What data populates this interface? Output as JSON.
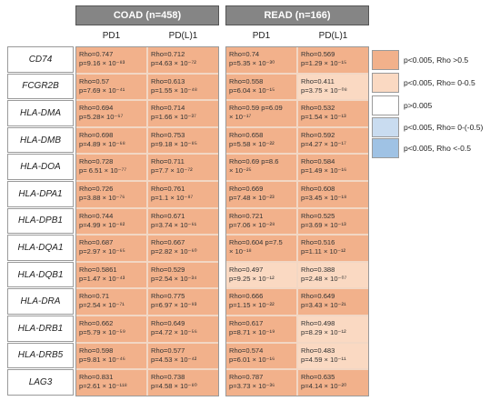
{
  "legend": [
    {
      "label": "p<0.005, Rho >0.5",
      "color": "#f2b18b"
    },
    {
      "label": "p<0.005, Rho= 0-0.5",
      "color": "#fad9c2"
    },
    {
      "label": "p>0.005",
      "color": "#ffffff"
    },
    {
      "label": "p<0.005, Rho= 0-(-0.5)",
      "color": "#c9dcf0"
    },
    {
      "label": "p<0.005, Rho <-0.5",
      "color": "#9fc2e4"
    }
  ],
  "chart_data": {
    "type": "table",
    "groups": [
      "COAD (n=458)",
      "READ (n=166)"
    ],
    "columns": [
      "PD1",
      "PD(L)1"
    ],
    "rows": [
      {
        "gene": "CD74",
        "cells": [
          {
            "rho": "Rho=0.747",
            "p": "p=9.16 × 10⁻⁸³",
            "cat": 0
          },
          {
            "rho": "Rho=0.712",
            "p": "p=4.63 × 10⁻⁷²",
            "cat": 0
          },
          {
            "rho": "Rho=0.74",
            "p": "p=5.35 × 10⁻³⁰",
            "cat": 0
          },
          {
            "rho": "Rho=0.569",
            "p": "p=1.29 × 10⁻¹⁵",
            "cat": 0
          }
        ]
      },
      {
        "gene": "FCGR2B",
        "cells": [
          {
            "rho": "Rho=0.57",
            "p": "p=7.69 × 10⁻⁴¹",
            "cat": 0
          },
          {
            "rho": "Rho=0.613",
            "p": "p=1.55 × 10⁻⁴⁸",
            "cat": 0
          },
          {
            "rho": "Rho=0.558",
            "p": "p=6.04 × 10⁻¹⁵",
            "cat": 0
          },
          {
            "rho": "Rho=0.411",
            "p": "p=3.75 × 10⁻⁰⁸",
            "cat": 1
          }
        ]
      },
      {
        "gene": "HLA-DMA",
        "cells": [
          {
            "rho": "Rho=0.694",
            "p": "p=5.28× 10⁻⁶⁷",
            "cat": 0
          },
          {
            "rho": "Rho=0.714",
            "p": "p=1.66 × 10⁻³⁷",
            "cat": 0
          },
          {
            "rho": "Rho=0.59 p=6.09",
            "p": "× 10⁻¹⁷",
            "cat": 0
          },
          {
            "rho": "Rho=0.532",
            "p": "p=1.54 × 10⁻¹³",
            "cat": 0
          }
        ]
      },
      {
        "gene": "HLA-DMB",
        "cells": [
          {
            "rho": "Rho=0.698",
            "p": "p=4.89 × 10⁻⁶⁸",
            "cat": 0
          },
          {
            "rho": "Rho=0.753",
            "p": "p=9.18 × 10⁻⁸⁵",
            "cat": 0
          },
          {
            "rho": "Rho=0.658",
            "p": "p=5.58 × 10⁻²²",
            "cat": 0
          },
          {
            "rho": "Rho=0.592",
            "p": "p=4.27 × 10⁻¹⁷",
            "cat": 0
          }
        ]
      },
      {
        "gene": "HLA-DOA",
        "cells": [
          {
            "rho": "Rho=0.728",
            "p": "p= 6.51 × 10⁻⁷⁷",
            "cat": 0
          },
          {
            "rho": "Rho=0.711",
            "p": "p=7.7 × 10⁻⁷²",
            "cat": 0
          },
          {
            "rho": "Rho=0.69 p=8.6",
            "p": "× 10⁻²⁵",
            "cat": 0
          },
          {
            "rho": "Rho=0.584",
            "p": "p=1.49 × 10⁻¹⁶",
            "cat": 0
          }
        ]
      },
      {
        "gene": "HLA-DPA1",
        "cells": [
          {
            "rho": "Rho=0.726",
            "p": "p=3.88 × 10⁻⁷⁶",
            "cat": 0
          },
          {
            "rho": "Rho=0.761",
            "p": "p=1.1 × 10⁻⁸⁷",
            "cat": 0
          },
          {
            "rho": "Rho=0.669",
            "p": "p=7.48 × 10⁻²³",
            "cat": 0
          },
          {
            "rho": "Rho=0.608",
            "p": "p=3.45 × 10⁻¹⁸",
            "cat": 0
          }
        ]
      },
      {
        "gene": "HLA-DPB1",
        "cells": [
          {
            "rho": "Rho=0.744",
            "p": "p=4.99 × 10⁻⁸²",
            "cat": 0
          },
          {
            "rho": "Rho=0.671",
            "p": "p=3.74 × 10⁻⁶¹",
            "cat": 0
          },
          {
            "rho": "Rho=0.721",
            "p": "p=7.06 × 10⁻²⁸",
            "cat": 0
          },
          {
            "rho": "Rho=0.525",
            "p": "p=3.69 × 10⁻¹³",
            "cat": 0
          }
        ]
      },
      {
        "gene": "HLA-DQA1",
        "cells": [
          {
            "rho": "Rho=0.687",
            "p": "p=2.97 × 10⁻⁶⁵",
            "cat": 0
          },
          {
            "rho": "Rho=0.667",
            "p": "p=2.82 × 10⁻⁶⁰",
            "cat": 0
          },
          {
            "rho": "Rho=0.604 p=7.5",
            "p": "× 10⁻¹⁸",
            "cat": 0
          },
          {
            "rho": "Rho=0.516",
            "p": "p=1.11 × 10⁻¹²",
            "cat": 0
          }
        ]
      },
      {
        "gene": "HLA-DQB1",
        "cells": [
          {
            "rho": "Rho=0.5861",
            "p": "p=1.47 × 10⁻⁴³",
            "cat": 0
          },
          {
            "rho": "Rho=0.529",
            "p": "p=2.54 × 10⁻³⁴",
            "cat": 0
          },
          {
            "rho": "Rho=0.497",
            "p": "p=9.25 × 10⁻¹²",
            "cat": 1
          },
          {
            "rho": "Rho=0.388",
            "p": "p=2.48 × 10⁻⁰⁷",
            "cat": 1
          }
        ]
      },
      {
        "gene": "HLA-DRA",
        "cells": [
          {
            "rho": "Rho=0.71",
            "p": "p=2.54 × 10⁻⁷¹",
            "cat": 0
          },
          {
            "rho": "Rho=0.775",
            "p": "p=6.97 × 10⁻⁹³",
            "cat": 0
          },
          {
            "rho": "Rho=0.666",
            "p": "p=1.15 × 10⁻²²",
            "cat": 0
          },
          {
            "rho": "Rho=0.649",
            "p": "p=3.43 × 10⁻²¹",
            "cat": 0
          }
        ]
      },
      {
        "gene": "HLA-DRB1",
        "cells": [
          {
            "rho": "Rho=0.662",
            "p": "p=5.79 × 10⁻⁵⁹",
            "cat": 0
          },
          {
            "rho": "Rho=0.649",
            "p": "p=4.72 × 10⁻⁵⁶",
            "cat": 0
          },
          {
            "rho": "Rho=0.617",
            "p": "p=8.71 × 10⁻¹⁹",
            "cat": 0
          },
          {
            "rho": "Rho=0.498",
            "p": "p=8.29 × 10⁻¹²",
            "cat": 1
          }
        ]
      },
      {
        "gene": "HLA-DRB5",
        "cells": [
          {
            "rho": "Rho=0.598",
            "p": "p=9.81 × 10⁻⁴⁶",
            "cat": 0
          },
          {
            "rho": "Rho=0.577",
            "p": "p=4.53 × 10⁻⁴²",
            "cat": 0
          },
          {
            "rho": "Rho=0.574",
            "p": "p=6.01 × 10⁻¹⁶",
            "cat": 0
          },
          {
            "rho": "Rho=0.483",
            "p": "p=4.59 × 10⁻¹¹",
            "cat": 1
          }
        ]
      },
      {
        "gene": "LAG3",
        "cells": [
          {
            "rho": "Rho=0.831",
            "p": "p=2.61 × 10⁻¹¹⁸",
            "cat": 0
          },
          {
            "rho": "Rho=0.738",
            "p": "p=4.58 × 10⁻⁸⁰",
            "cat": 0
          },
          {
            "rho": "Rho=0.787",
            "p": "p=3.73 × 10⁻³⁶",
            "cat": 0
          },
          {
            "rho": "Rho=0.635",
            "p": "p=4.14 × 10⁻²⁰",
            "cat": 0
          }
        ]
      }
    ]
  }
}
